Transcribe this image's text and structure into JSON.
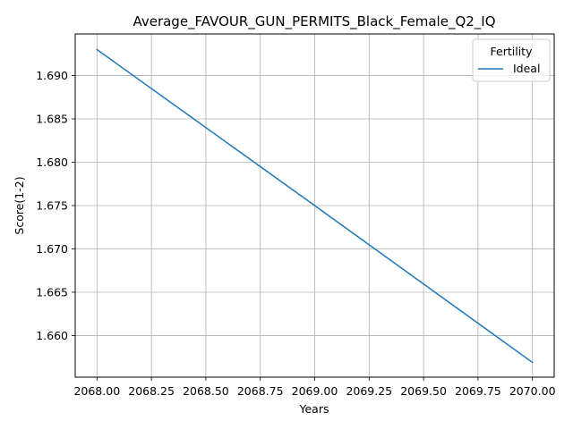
{
  "chart_data": {
    "type": "line",
    "title": "Average_FAVOUR_GUN_PERMITS_Black_Female_Q2_IQ",
    "xlabel": "Years",
    "ylabel": "Score(1-2)",
    "xlim": [
      2067.9,
      2070.1
    ],
    "ylim": [
      1.6552,
      1.6948
    ],
    "grid": true,
    "legend": {
      "title": "Fertility",
      "placement": "top-right"
    },
    "x_ticks": [
      2068.0,
      2068.25,
      2068.5,
      2068.75,
      2069.0,
      2069.25,
      2069.5,
      2069.75,
      2070.0
    ],
    "x_tick_labels": [
      "2068.00",
      "2068.25",
      "2068.50",
      "2068.75",
      "2069.00",
      "2069.25",
      "2069.50",
      "2069.75",
      "2070.00"
    ],
    "y_ticks": [
      1.66,
      1.665,
      1.67,
      1.675,
      1.68,
      1.685,
      1.69
    ],
    "y_tick_labels": [
      "1.660",
      "1.665",
      "1.670",
      "1.675",
      "1.680",
      "1.685",
      "1.690"
    ],
    "series": [
      {
        "name": "Ideal",
        "color": "#1f77b4",
        "x": [
          2068,
          2069,
          2070
        ],
        "y": [
          1.693,
          1.675,
          1.6569
        ]
      }
    ]
  }
}
